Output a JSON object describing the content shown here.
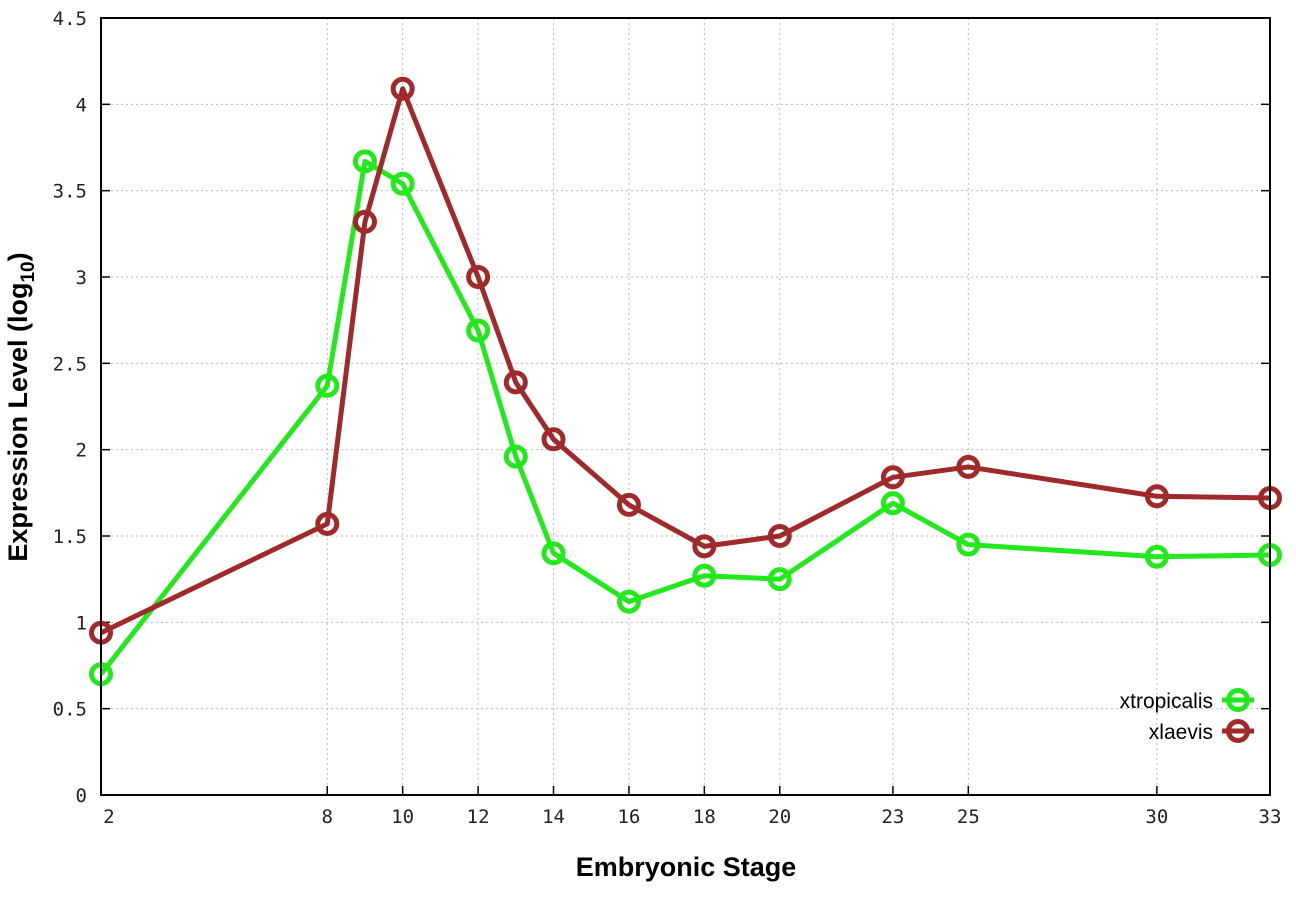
{
  "chart_data": {
    "type": "line",
    "title": "",
    "xlabel": "Embryonic Stage",
    "ylabel": "Expression Level (log",
    "ylabel_subscript": "10",
    "ylabel_suffix": ")",
    "x": [
      2,
      8,
      9,
      10,
      12,
      13,
      14,
      16,
      18,
      20,
      23,
      25,
      30,
      33
    ],
    "x_tick_labels": [
      "2",
      "8",
      "10",
      "12",
      "14",
      "16",
      "18",
      "20",
      "23",
      "25",
      "30",
      "33"
    ],
    "y_tick_labels": [
      "0",
      "0.5",
      "1",
      "1.5",
      "2",
      "2.5",
      "3",
      "3.5",
      "4",
      "4.5"
    ],
    "xlim": [
      2,
      33
    ],
    "ylim": [
      0,
      4.5
    ],
    "grid": true,
    "legend_position": "bottom-right",
    "series": [
      {
        "name": "xtropicalis",
        "color": "#22e81c",
        "values": [
          0.7,
          2.37,
          3.67,
          3.54,
          2.69,
          1.96,
          1.4,
          1.12,
          1.27,
          1.25,
          1.69,
          1.45,
          1.38,
          1.39
        ]
      },
      {
        "name": "xlaevis",
        "color": "#a0292a",
        "values": [
          0.94,
          1.57,
          3.32,
          4.09,
          3.0,
          2.39,
          2.06,
          1.68,
          1.44,
          1.5,
          1.84,
          1.9,
          1.73,
          1.72
        ]
      }
    ]
  }
}
